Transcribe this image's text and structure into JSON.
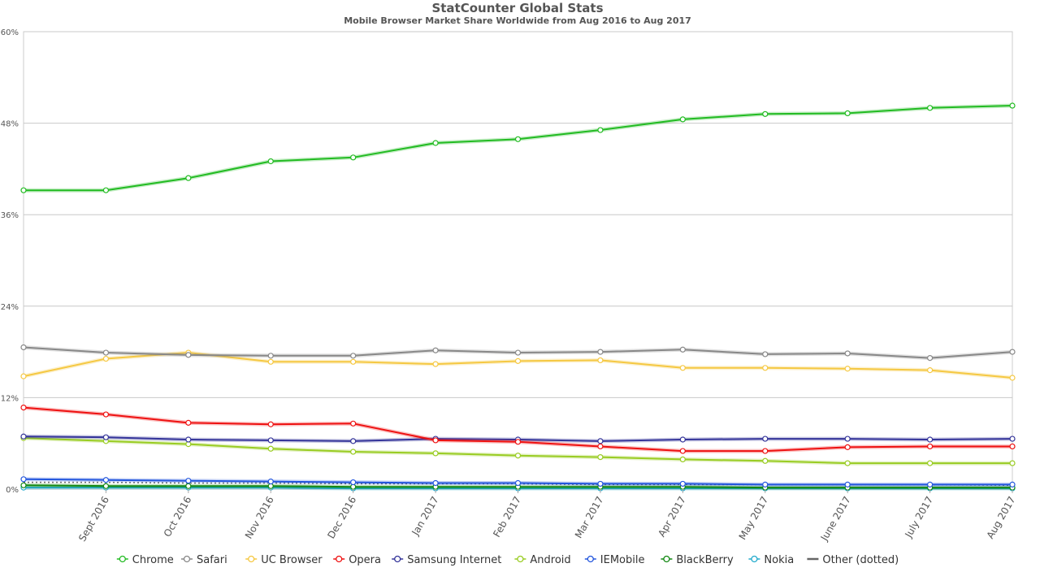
{
  "chart_data": {
    "type": "line",
    "title": "StatCounter Global Stats",
    "subtitle": "Mobile Browser Market Share Worldwide from Aug 2016 to Aug 2017",
    "categories": [
      "Aug 2016",
      "Sept 2016",
      "Oct 2016",
      "Nov 2016",
      "Dec 2016",
      "Jan 2017",
      "Feb 2017",
      "Mar 2017",
      "Apr 2017",
      "May 2017",
      "June 2017",
      "July 2017",
      "Aug 2017"
    ],
    "x_tick_labels": [
      "Sept 2016",
      "Oct 2016",
      "Nov 2016",
      "Dec 2016",
      "Jan 2017",
      "Feb 2017",
      "Mar 2017",
      "Apr 2017",
      "May 2017",
      "June 2017",
      "July 2017",
      "Aug 2017"
    ],
    "y_ticks": [
      "0%",
      "12%",
      "24%",
      "36%",
      "48%",
      "60%"
    ],
    "ylim": [
      0,
      60
    ],
    "grid": true,
    "legend_position": "bottom",
    "series": [
      {
        "name": "Chrome",
        "color": "#22bb22",
        "values": [
          39.2,
          39.2,
          40.8,
          43.0,
          43.5,
          45.4,
          45.9,
          47.1,
          48.5,
          49.2,
          49.3,
          50.0,
          50.3
        ]
      },
      {
        "name": "Safari",
        "color": "#888888",
        "values": [
          18.6,
          17.9,
          17.6,
          17.5,
          17.5,
          18.2,
          17.9,
          18.0,
          18.3,
          17.7,
          17.8,
          17.2,
          18.0
        ]
      },
      {
        "name": "UC Browser",
        "color": "#f5c842",
        "values": [
          14.8,
          17.1,
          17.9,
          16.7,
          16.7,
          16.4,
          16.8,
          16.9,
          15.9,
          15.9,
          15.8,
          15.6,
          14.6
        ]
      },
      {
        "name": "Opera",
        "color": "#ee1111",
        "values": [
          10.7,
          9.8,
          8.7,
          8.5,
          8.6,
          6.4,
          6.2,
          5.6,
          5.0,
          5.0,
          5.5,
          5.6,
          5.6
        ]
      },
      {
        "name": "Samsung Internet",
        "color": "#333399",
        "values": [
          6.9,
          6.8,
          6.5,
          6.4,
          6.3,
          6.6,
          6.5,
          6.3,
          6.5,
          6.6,
          6.6,
          6.5,
          6.6
        ]
      },
      {
        "name": "Android",
        "color": "#99cc22",
        "values": [
          6.7,
          6.3,
          5.9,
          5.3,
          4.9,
          4.7,
          4.4,
          4.2,
          3.9,
          3.7,
          3.4,
          3.4,
          3.4
        ]
      },
      {
        "name": "IEMobile",
        "color": "#2255dd",
        "values": [
          1.3,
          1.2,
          1.1,
          1.0,
          0.9,
          0.8,
          0.8,
          0.7,
          0.7,
          0.6,
          0.6,
          0.6,
          0.6
        ]
      },
      {
        "name": "BlackBerry",
        "color": "#118811",
        "values": [
          0.5,
          0.4,
          0.4,
          0.4,
          0.3,
          0.3,
          0.3,
          0.3,
          0.3,
          0.2,
          0.2,
          0.2,
          0.2
        ]
      },
      {
        "name": "Nokia",
        "color": "#22aacc",
        "values": [
          0.2,
          0.2,
          0.2,
          0.2,
          0.1,
          0.1,
          0.1,
          0.1,
          0.1,
          0.1,
          0.1,
          0.1,
          0.1
        ]
      },
      {
        "name": "Other (dotted)",
        "color": "#666666",
        "dotted": true,
        "values": [
          0.9,
          0.9,
          0.8,
          0.8,
          0.7,
          0.7,
          0.7,
          0.6,
          0.6,
          0.6,
          0.6,
          0.6,
          0.5
        ]
      }
    ]
  }
}
